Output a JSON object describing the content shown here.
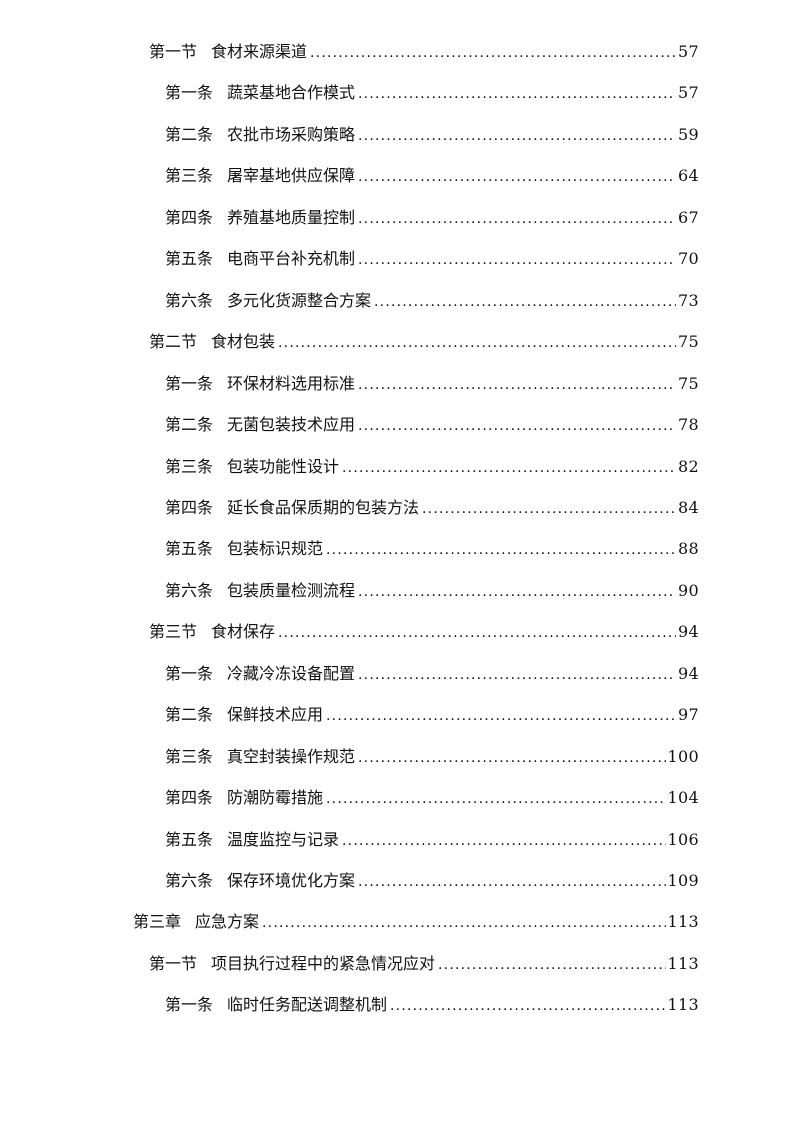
{
  "toc": {
    "entries": [
      {
        "level": 1,
        "prefix": "第一节",
        "title": "食材来源渠道",
        "page": "57"
      },
      {
        "level": 2,
        "prefix": "第一条",
        "title": "蔬菜基地合作模式",
        "page": "57"
      },
      {
        "level": 2,
        "prefix": "第二条",
        "title": "农批市场采购策略",
        "page": "59"
      },
      {
        "level": 2,
        "prefix": "第三条",
        "title": "屠宰基地供应保障",
        "page": "64"
      },
      {
        "level": 2,
        "prefix": "第四条",
        "title": "养殖基地质量控制",
        "page": "67"
      },
      {
        "level": 2,
        "prefix": "第五条",
        "title": "电商平台补充机制",
        "page": "70"
      },
      {
        "level": 2,
        "prefix": "第六条",
        "title": "多元化货源整合方案",
        "page": "73"
      },
      {
        "level": 1,
        "prefix": "第二节",
        "title": "食材包装",
        "page": "75"
      },
      {
        "level": 2,
        "prefix": "第一条",
        "title": "环保材料选用标准",
        "page": "75"
      },
      {
        "level": 2,
        "prefix": "第二条",
        "title": "无菌包装技术应用",
        "page": "78"
      },
      {
        "level": 2,
        "prefix": "第三条",
        "title": "包装功能性设计",
        "page": "82"
      },
      {
        "level": 2,
        "prefix": "第四条",
        "title": "延长食品保质期的包装方法",
        "page": "84"
      },
      {
        "level": 2,
        "prefix": "第五条",
        "title": "包装标识规范",
        "page": "88"
      },
      {
        "level": 2,
        "prefix": "第六条",
        "title": "包装质量检测流程",
        "page": "90"
      },
      {
        "level": 1,
        "prefix": "第三节",
        "title": "食材保存",
        "page": "94"
      },
      {
        "level": 2,
        "prefix": "第一条",
        "title": "冷藏冷冻设备配置",
        "page": "94"
      },
      {
        "level": 2,
        "prefix": "第二条",
        "title": "保鲜技术应用",
        "page": "97"
      },
      {
        "level": 2,
        "prefix": "第三条",
        "title": "真空封装操作规范",
        "page": "100"
      },
      {
        "level": 2,
        "prefix": "第四条",
        "title": "防潮防霉措施",
        "page": "104"
      },
      {
        "level": 2,
        "prefix": "第五条",
        "title": "温度监控与记录",
        "page": "106"
      },
      {
        "level": 2,
        "prefix": "第六条",
        "title": "保存环境优化方案",
        "page": "109"
      },
      {
        "level": 0,
        "prefix": "第三章",
        "title": "应急方案",
        "page": "113"
      },
      {
        "level": 1,
        "prefix": "第一节",
        "title": "项目执行过程中的紧急情况应对",
        "page": "113"
      },
      {
        "level": 2,
        "prefix": "第一条",
        "title": "临时任务配送调整机制",
        "page": "113"
      }
    ]
  }
}
